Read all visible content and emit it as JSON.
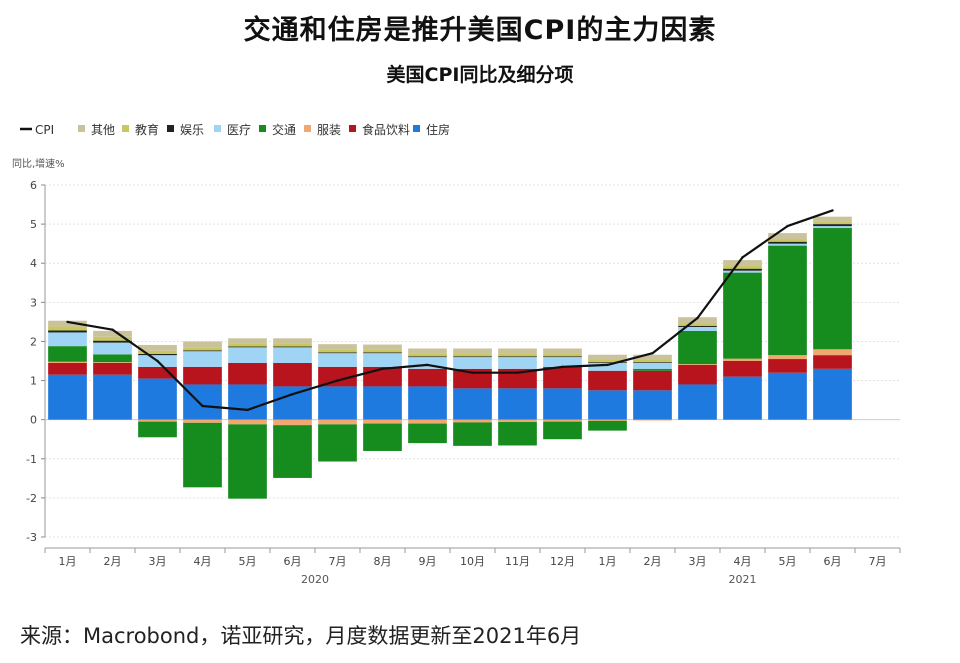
{
  "title": "交通和住房是推升美国CPI的主力因素",
  "subtitle": "美国CPI同比及细分项",
  "source": "来源：Macrobond，诺亚研究，月度数据更新至2021年6月",
  "colors": {
    "CPI": "#111111",
    "其他": "#c9c29a",
    "教育": "#c8c860",
    "娱乐": "#222222",
    "医疗": "#9fd4f4",
    "交通": "#168c1e",
    "服装": "#f0a870",
    "食品饮料": "#b8141e",
    "住房": "#1f7ae0"
  },
  "chart_data": {
    "type": "bar",
    "stacked": true,
    "ylabel": "同比,增速%",
    "ylim": [
      -3,
      6
    ],
    "yticks": [
      -3,
      -2,
      -1,
      0,
      1,
      2,
      3,
      4,
      5,
      6
    ],
    "grid": true,
    "legend_position": "top-left",
    "categories": [
      "1月",
      "2月",
      "3月",
      "4月",
      "5月",
      "6月",
      "7月",
      "8月",
      "9月",
      "10月",
      "11月",
      "12月",
      "1月",
      "2月",
      "3月",
      "4月",
      "5月",
      "6月",
      "7月"
    ],
    "year_labels": [
      {
        "label": "2020",
        "after_index": 5.5
      },
      {
        "label": "2021",
        "after_index": 15
      }
    ],
    "line_series": {
      "name": "CPI",
      "values": [
        2.5,
        2.3,
        1.5,
        0.35,
        0.25,
        0.65,
        1.0,
        1.3,
        1.4,
        1.2,
        1.2,
        1.35,
        1.4,
        1.7,
        2.6,
        4.15,
        4.95,
        5.35,
        null
      ]
    },
    "series": [
      {
        "name": "住房",
        "values": [
          1.15,
          1.15,
          1.05,
          0.9,
          0.9,
          0.85,
          0.85,
          0.85,
          0.85,
          0.8,
          0.8,
          0.8,
          0.75,
          0.75,
          0.9,
          1.1,
          1.2,
          1.3,
          null
        ]
      },
      {
        "name": "食品饮料",
        "values": [
          0.3,
          0.3,
          0.3,
          0.45,
          0.55,
          0.6,
          0.5,
          0.5,
          0.45,
          0.5,
          0.5,
          0.55,
          0.5,
          0.5,
          0.5,
          0.4,
          0.35,
          0.35,
          null
        ]
      },
      {
        "name": "服装",
        "values": [
          0.03,
          0.02,
          -0.05,
          -0.08,
          -0.12,
          -0.14,
          -0.12,
          -0.1,
          -0.1,
          -0.07,
          -0.06,
          -0.05,
          -0.03,
          -0.02,
          0.02,
          0.06,
          0.1,
          0.15,
          null
        ]
      },
      {
        "name": "交通",
        "values": [
          0.4,
          0.2,
          -0.4,
          -1.65,
          -1.9,
          -1.35,
          -0.95,
          -0.7,
          -0.5,
          -0.6,
          -0.6,
          -0.45,
          -0.25,
          0.05,
          0.85,
          2.2,
          2.8,
          3.1,
          null
        ]
      },
      {
        "name": "医疗",
        "values": [
          0.35,
          0.3,
          0.3,
          0.4,
          0.4,
          0.4,
          0.35,
          0.35,
          0.3,
          0.3,
          0.3,
          0.25,
          0.2,
          0.15,
          0.1,
          0.05,
          0.05,
          0.05,
          null
        ]
      },
      {
        "name": "娱乐",
        "values": [
          0.05,
          0.05,
          0.03,
          0.02,
          0.02,
          0.02,
          0.02,
          0.02,
          0.02,
          0.02,
          0.02,
          0.02,
          0.02,
          0.02,
          0.03,
          0.05,
          0.05,
          0.05,
          null
        ]
      },
      {
        "name": "教育",
        "values": [
          0.1,
          0.1,
          0.08,
          0.08,
          0.08,
          0.08,
          0.08,
          0.08,
          0.08,
          0.08,
          0.08,
          0.08,
          0.07,
          0.07,
          0.07,
          0.07,
          0.07,
          0.07,
          null
        ]
      },
      {
        "name": "其他",
        "values": [
          0.15,
          0.15,
          0.15,
          0.15,
          0.13,
          0.13,
          0.13,
          0.12,
          0.12,
          0.12,
          0.12,
          0.12,
          0.12,
          0.12,
          0.15,
          0.15,
          0.15,
          0.12,
          null
        ]
      }
    ],
    "legend_order": [
      "CPI",
      "其他",
      "教育",
      "娱乐",
      "医疗",
      "交通",
      "服装",
      "食品饮料",
      "住房"
    ]
  }
}
